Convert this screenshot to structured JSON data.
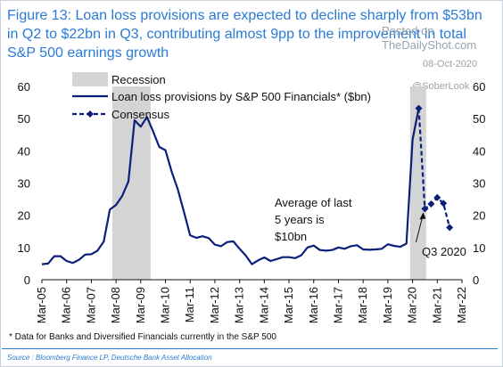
{
  "title": "Figure 13: Loan loss provisions are expected to decline sharply from $53bn in Q2 to $22bn in Q3, contributing almost 9pp to the improvement in total S&P 500 earnings growth",
  "watermark": {
    "posted_on": "Posted on",
    "site": "TheDailyShot.com",
    "date": "08-Oct-2020",
    "handle": "@SoberLook"
  },
  "footnote": "* Data for Banks and Diversified Financials currently in the S&P 500",
  "source": "Source : Bloomberg Finance LP, Deutsche Bank Asset Allocation",
  "colors": {
    "title": "#2a7bd6",
    "series": "#0b1f7a",
    "recession": "#d4d4d4"
  },
  "chart_data": {
    "type": "line",
    "title": "",
    "xlabel": "",
    "ylabel": "",
    "ylim": [
      0,
      60
    ],
    "y_ticks": [
      0,
      10,
      20,
      30,
      40,
      50,
      60
    ],
    "x_ticks": [
      "Mar-05",
      "Mar-06",
      "Mar-07",
      "Mar-08",
      "Mar-09",
      "Mar-10",
      "Mar-11",
      "Mar-12",
      "Mar-13",
      "Mar-14",
      "Mar-15",
      "Mar-16",
      "Mar-17",
      "Mar-18",
      "Mar-19",
      "Mar-20",
      "Mar-21",
      "Mar-22"
    ],
    "legend": [
      "Recession",
      "Loan loss provisions by S&P 500 Financials* ($bn)",
      "Consensus"
    ],
    "legend_position": "top-left",
    "recessions": [
      {
        "start": 2007.85,
        "end": 2009.4
      },
      {
        "start": 2019.9,
        "end": 2020.55
      }
    ],
    "series": [
      {
        "name": "Loan loss provisions by S&P 500 Financials* ($bn)",
        "style": "solid",
        "x": [
          2005.0,
          2005.25,
          2005.5,
          2005.75,
          2006.0,
          2006.25,
          2006.5,
          2006.75,
          2007.0,
          2007.25,
          2007.5,
          2007.75,
          2008.0,
          2008.25,
          2008.5,
          2008.75,
          2009.0,
          2009.25,
          2009.5,
          2009.75,
          2010.0,
          2010.25,
          2010.5,
          2010.75,
          2011.0,
          2011.25,
          2011.5,
          2011.75,
          2012.0,
          2012.25,
          2012.5,
          2012.75,
          2013.0,
          2013.25,
          2013.5,
          2013.75,
          2014.0,
          2014.25,
          2014.5,
          2014.75,
          2015.0,
          2015.25,
          2015.5,
          2015.75,
          2016.0,
          2016.25,
          2016.5,
          2016.75,
          2017.0,
          2017.25,
          2017.5,
          2017.75,
          2018.0,
          2018.25,
          2018.5,
          2018.75,
          2019.0,
          2019.25,
          2019.5,
          2019.75,
          2020.0,
          2020.25
        ],
        "values": [
          4.8,
          5.0,
          7.3,
          7.3,
          5.8,
          5.2,
          6.2,
          7.8,
          7.9,
          9.0,
          11.8,
          21.8,
          23.2,
          26.0,
          30.5,
          49.5,
          47.5,
          50.5,
          46.0,
          41.2,
          40.2,
          33.5,
          28.0,
          21.0,
          13.8,
          13.0,
          13.5,
          12.9,
          10.9,
          10.4,
          11.7,
          11.9,
          9.6,
          7.5,
          4.8,
          6.0,
          6.9,
          5.8,
          6.4,
          7.0,
          7.0,
          6.7,
          7.6,
          10.0,
          10.6,
          9.2,
          9.0,
          9.2,
          10.0,
          9.6,
          10.4,
          10.7,
          9.4,
          9.3,
          9.4,
          9.6,
          11.0,
          10.5,
          10.2,
          11.2,
          43.5,
          53.2
        ]
      },
      {
        "name": "Consensus",
        "style": "dashed",
        "x": [
          2020.25,
          2020.5,
          2020.75,
          2021.0,
          2021.25,
          2021.5
        ],
        "values": [
          53.2,
          22.0,
          23.5,
          25.5,
          23.7,
          16.2
        ]
      }
    ],
    "annotations": [
      {
        "text": "Average of last 5 years is $10bn"
      },
      {
        "text": "Q3 2020"
      }
    ]
  },
  "annotation_lines": {
    "average": [
      "Average of last",
      "5 years is",
      "$10bn"
    ],
    "q3": "Q3 2020"
  }
}
